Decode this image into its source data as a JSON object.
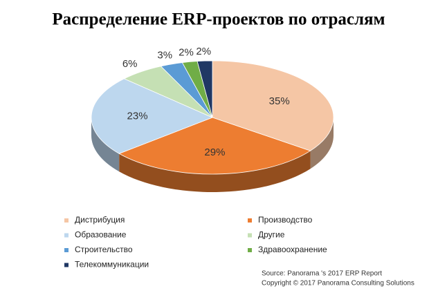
{
  "chart_data": {
    "type": "pie",
    "title": "Распределение ERP-проектов по отраслям",
    "categories": [
      "Дистрибуция",
      "Производство",
      "Образование",
      "Другие",
      "Строительство",
      "Здравоохранение",
      "Телекоммуникации"
    ],
    "values": [
      35,
      29,
      23,
      6,
      3,
      2,
      2
    ],
    "value_labels": [
      "35%",
      "29%",
      "23%",
      "6%",
      "3%",
      "2%",
      "2%"
    ],
    "colors": [
      "#f5c6a5",
      "#ed7d31",
      "#bdd7ee",
      "#c5e0b4",
      "#5b9bd5",
      "#70ad47",
      "#203864"
    ],
    "source": [
      "Source: Panorama 's 2017 ERP Report",
      "Copyright © 2017 Panorama Consulting Solutions"
    ]
  }
}
